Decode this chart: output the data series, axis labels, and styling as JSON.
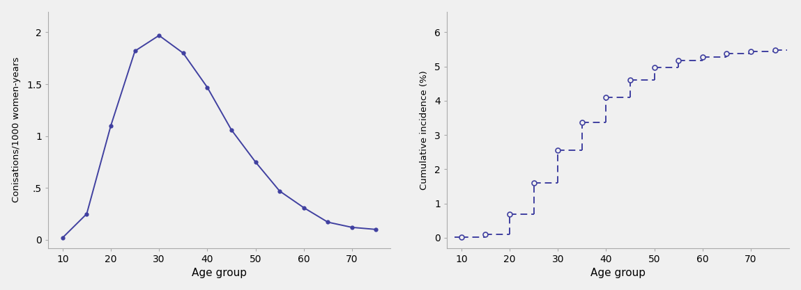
{
  "left_x": [
    10,
    15,
    20,
    25,
    30,
    35,
    40,
    45,
    50,
    55,
    60,
    65,
    70,
    75
  ],
  "left_y": [
    0.02,
    0.25,
    1.1,
    1.82,
    1.97,
    1.8,
    1.47,
    1.06,
    0.75,
    0.47,
    0.31,
    0.17,
    0.12,
    0.1
  ],
  "left_ylabel": "Conisations/1000 women-years",
  "left_xlabel": "Age group",
  "left_ylim": [
    -0.08,
    2.2
  ],
  "left_yticks": [
    0,
    0.5,
    1.0,
    1.5,
    2.0
  ],
  "left_ytick_labels": [
    "0",
    ".5",
    "1",
    "1.5",
    "2"
  ],
  "left_xticks": [
    10,
    20,
    30,
    40,
    50,
    60,
    70
  ],
  "right_x": [
    10,
    15,
    20,
    25,
    30,
    35,
    40,
    45,
    50,
    55,
    60,
    65,
    70,
    75
  ],
  "right_y": [
    0.02,
    0.1,
    0.68,
    1.6,
    2.55,
    3.37,
    4.1,
    4.6,
    4.97,
    5.17,
    5.28,
    5.37,
    5.44,
    5.47
  ],
  "right_ylabel": "Cumulative incidence (%)",
  "right_xlabel": "Age group",
  "right_ylim": [
    -0.3,
    6.6
  ],
  "right_yticks": [
    0,
    1,
    2,
    3,
    4,
    5,
    6
  ],
  "right_xticks": [
    10,
    20,
    30,
    40,
    50,
    60,
    70
  ],
  "line_color": "#4040a0",
  "bg_color": "#f0f0f0",
  "spine_color": "#aaaaaa"
}
